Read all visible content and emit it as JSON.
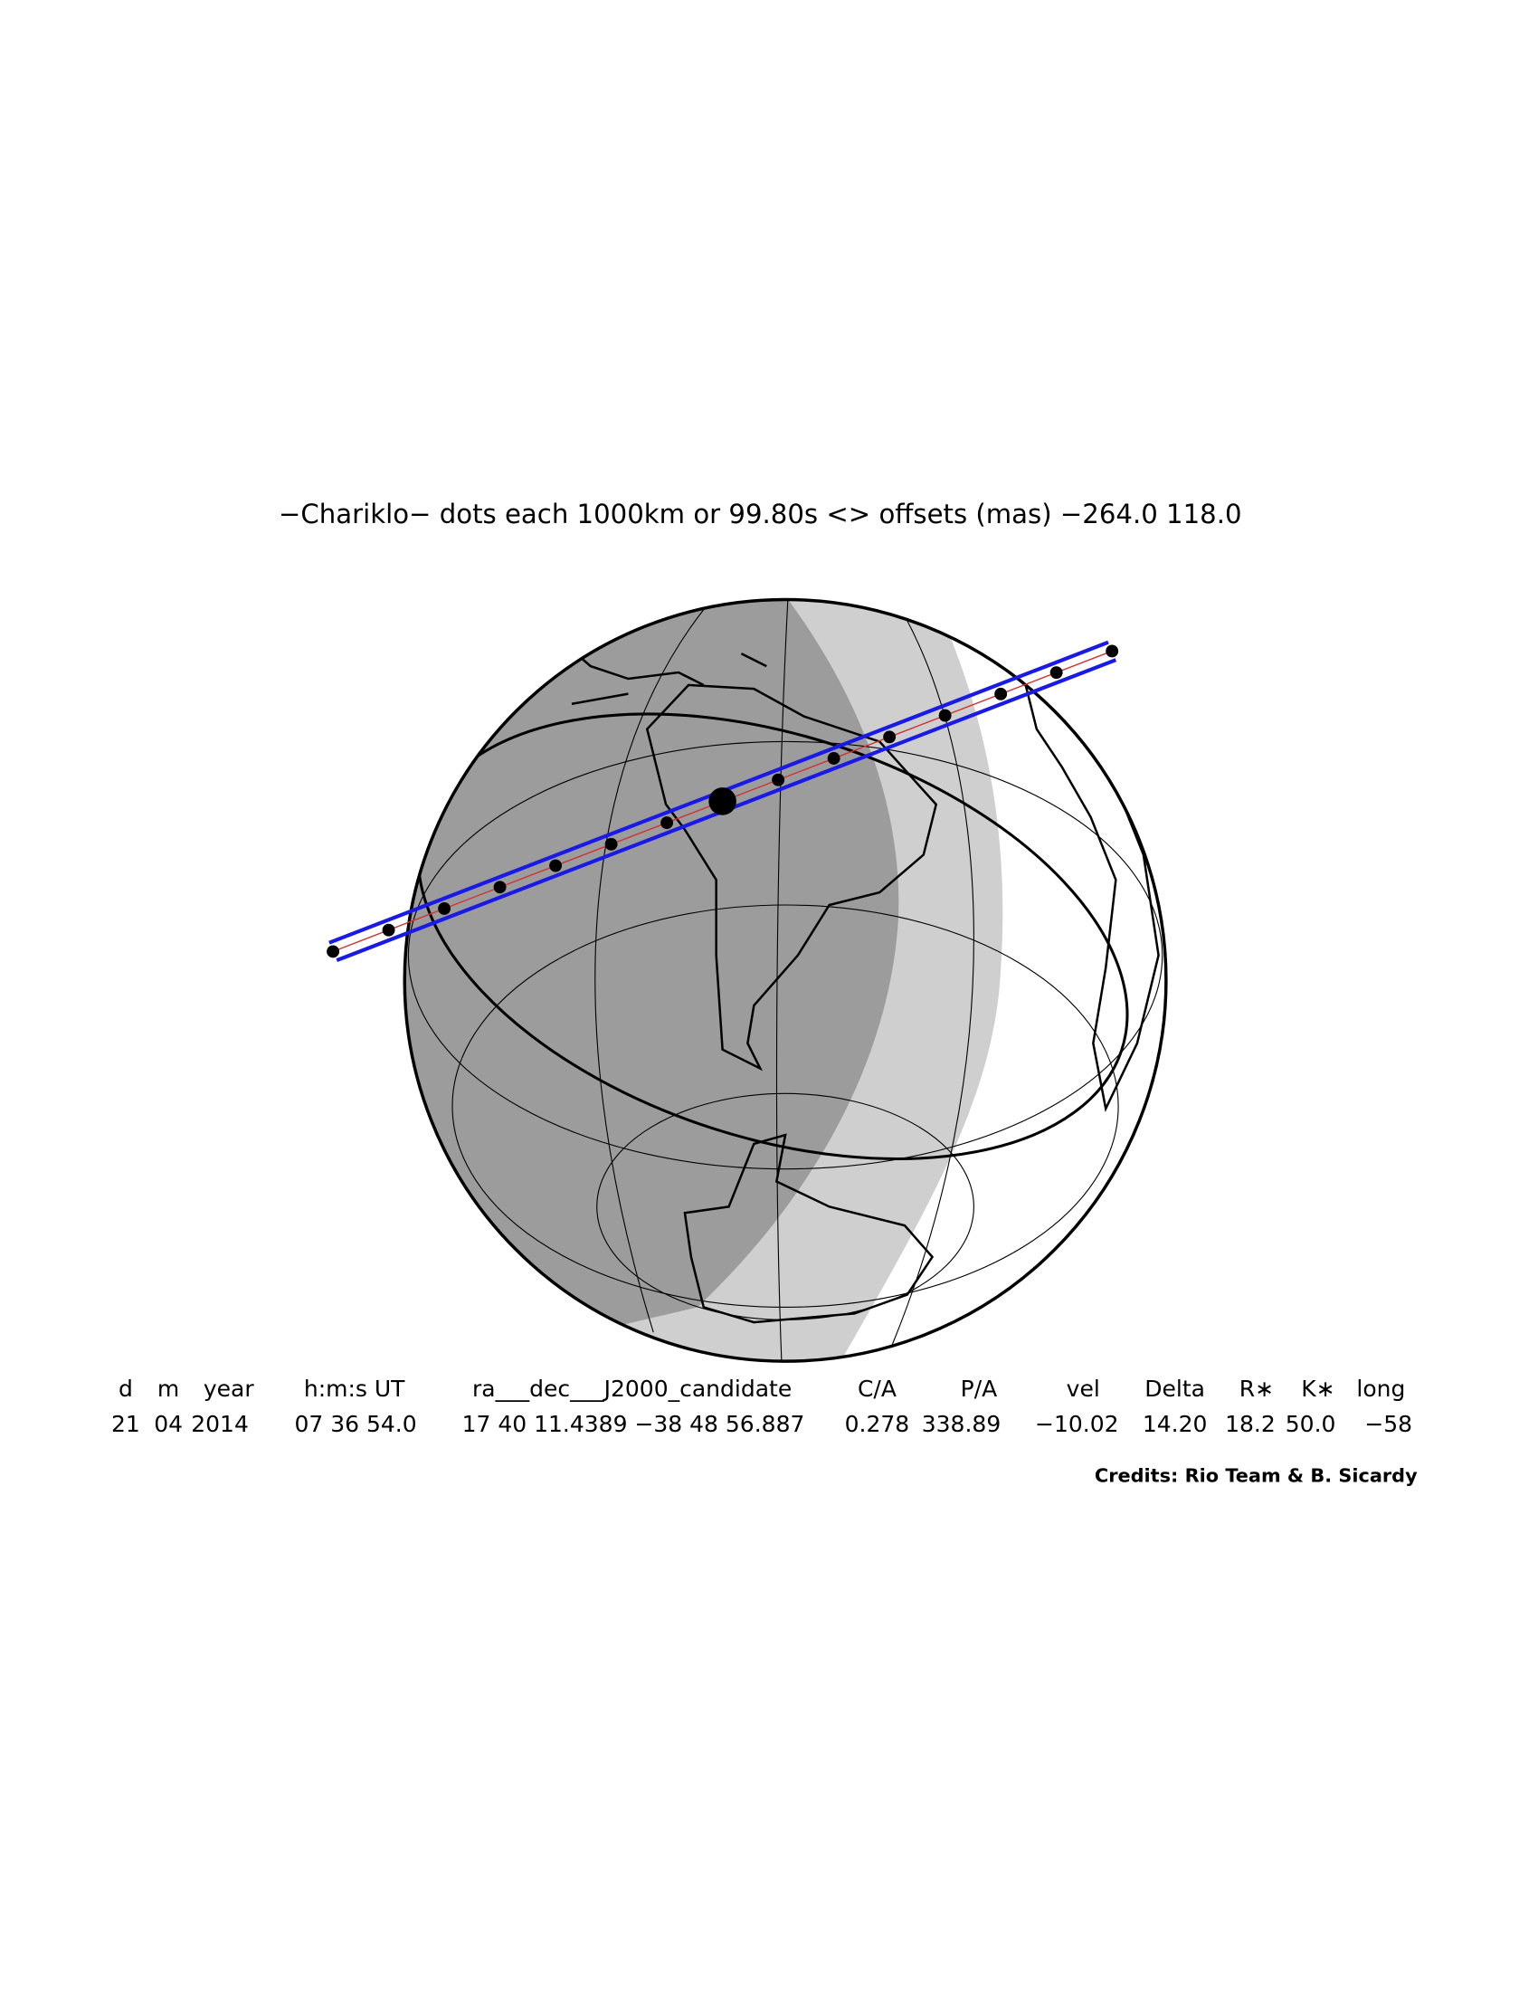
{
  "title": "−Chariklo− dots each 1000km or 99.80s <> offsets (mas) −264.0  118.0",
  "table": {
    "header": [
      "d",
      "m",
      "year",
      "h:m:s UT",
      "ra___dec___J2000_candidate",
      "C/A",
      "P/A",
      "vel",
      "Delta",
      "R∗",
      "K∗",
      "long"
    ],
    "rows": [
      [
        "21",
        "04",
        "2014",
        "07 36 54.0",
        "17 40 11.4389 −38 48 56.887",
        "0.278",
        "338.89",
        "−10.02",
        "14.20",
        "18.2",
        "50.0",
        "−58"
      ]
    ]
  },
  "credits": "Credits: Rio Team & B. Sicardy"
}
